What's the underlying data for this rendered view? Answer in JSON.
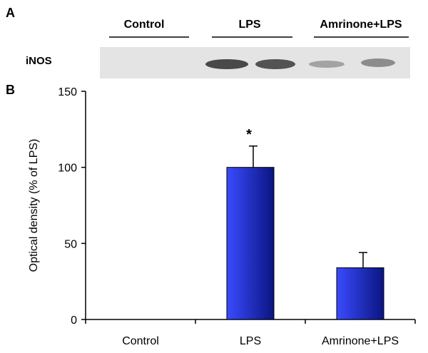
{
  "panel_a": {
    "letter": "A",
    "groups": [
      "Control",
      "LPS",
      "Amrinone+LPS"
    ],
    "row_label": "iNOS"
  },
  "panel_b": {
    "letter": "B"
  },
  "colors": {
    "bar_light": "#3a4bff",
    "bar_dark": "#0a1580",
    "axis": "#000000",
    "blot_background": "#e6e6e6",
    "blot_band": "#3a3a3a"
  },
  "chart_data": {
    "type": "bar",
    "categories": [
      "Control",
      "LPS",
      "Amrinone+LPS"
    ],
    "values": [
      0,
      100,
      34
    ],
    "errors": [
      0,
      14,
      10
    ],
    "significance": [
      "",
      "*",
      ""
    ],
    "title": "",
    "xlabel": "",
    "ylabel": "Optical density (% of LPS)",
    "ylim": [
      0,
      150
    ],
    "yticks": [
      0,
      50,
      100,
      150
    ],
    "grid": false,
    "legend": "none"
  }
}
